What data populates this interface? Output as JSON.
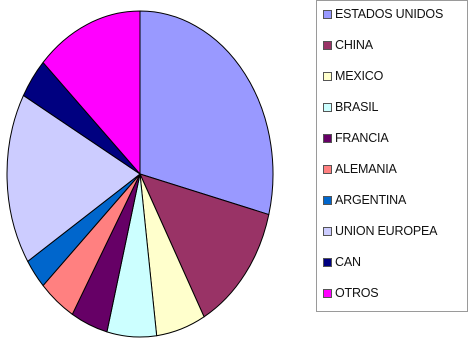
{
  "chart_data": {
    "type": "pie",
    "title": "",
    "legend_position": "right",
    "start_angle_deg": 0,
    "direction": "clockwise",
    "slices": [
      {
        "label": "ESTADOS UNIDOS",
        "value": 29.0,
        "color": "#9999ff"
      },
      {
        "label": "CHINA",
        "value": 13.0,
        "color": "#993366"
      },
      {
        "label": "MEXICO",
        "value": 6.0,
        "color": "#ffffcc"
      },
      {
        "label": "BRASIL",
        "value": 6.0,
        "color": "#ccffff"
      },
      {
        "label": "FRANCIA",
        "value": 4.5,
        "color": "#660066"
      },
      {
        "label": "ALEMANIA",
        "value": 4.5,
        "color": "#ff8080"
      },
      {
        "label": "ARGENTINA",
        "value": 3.0,
        "color": "#0066cc"
      },
      {
        "label": "UNION EUROPEA",
        "value": 17.0,
        "color": "#ccccff"
      },
      {
        "label": "CAN",
        "value": 4.0,
        "color": "#000080"
      },
      {
        "label": "OTROS",
        "value": 13.0,
        "color": "#ff00ff"
      }
    ]
  }
}
